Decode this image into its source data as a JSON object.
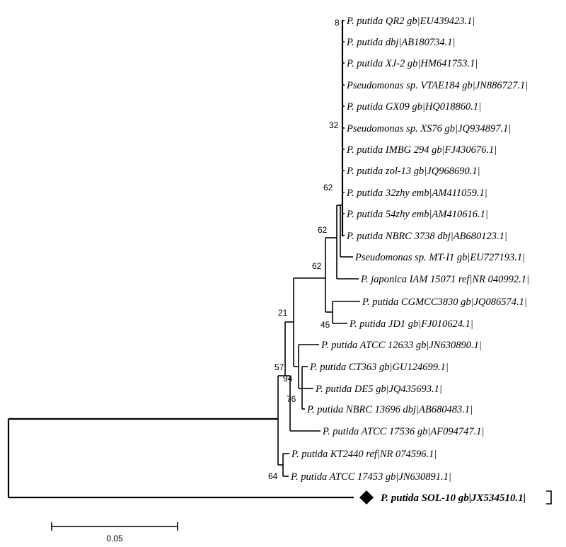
{
  "tree": {
    "leaves": [
      "P. putida QR2 gb|EU439423.1|",
      "P. putida dbj|AB180734.1|",
      "P. putida XJ-2 gb|HM641753.1|",
      "Pseudomonas sp. VTAE184 gb|JN886727.1|",
      "P. putida GX09 gb|HQ018860.1|",
      "Pseudomonas sp. XS76 gb|JQ934897.1|",
      "P. putida IMBG 294 gb|FJ430676.1|",
      "P. putida zol-13 gb|JQ968690.1|",
      "P. putida 32zhy emb|AM411059.1|",
      "P. putida 54zhy emb|AM410616.1|",
      "P. putida NBRC 3738 dbj|AB680123.1|",
      "Pseudomonas sp. MT-I1 gb|EU727193.1|",
      "P. japonica IAM 15071 ref|NR 040992.1|",
      "P. putida CGMCC3830 gb|JQ086574.1|",
      "P. putida JD1 gb|FJ010624.1|",
      "P. putida ATCC 12633 gb|JN630890.1|",
      "P. putida CT363 gb|GU124699.1|",
      "P. putida DE5 gb|JQ435693.1|",
      "P. putida NBRC 13696 dbj|AB680483.1|",
      "P. putida ATCC 17536 gb|AF094747.1|",
      "P. putida KT2440 ref|NR 074596.1|",
      "P. putida ATCC 17453 gb|JN630891.1|",
      "P. putida SOL-10 gb|JX534510.1|"
    ],
    "bootstrap": [
      "8",
      "32",
      "62",
      "62",
      "62",
      "45",
      "21",
      "57",
      "94",
      "76",
      "64"
    ],
    "highlighted_leaf": "P. putida SOL-10 gb|JX534510.1|",
    "highlight_marker_icon": "diamond-icon",
    "scale_bar_label": "0.05"
  }
}
